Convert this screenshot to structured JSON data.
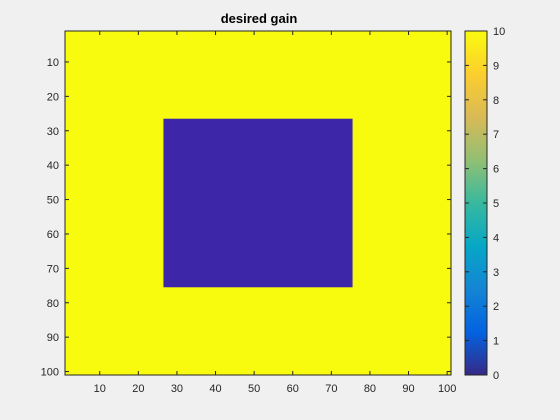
{
  "chart_data": {
    "type": "heatmap",
    "title": "desired gain",
    "xlabel": "",
    "ylabel": "",
    "x_range": [
      1,
      101
    ],
    "y_range": [
      1,
      101
    ],
    "y_direction": "reversed",
    "x_ticks": [
      10,
      20,
      30,
      40,
      50,
      60,
      70,
      80,
      90,
      100
    ],
    "y_ticks": [
      10,
      20,
      30,
      40,
      50,
      60,
      70,
      80,
      90,
      100
    ],
    "background_value": 10,
    "regions": [
      {
        "x_range": [
          27,
          75
        ],
        "y_range": [
          27,
          75
        ],
        "value": 0
      }
    ],
    "colorbar": {
      "range": [
        0,
        10
      ],
      "ticks": [
        0,
        1,
        2,
        3,
        4,
        5,
        6,
        7,
        8,
        9,
        10
      ],
      "colormap": "parula",
      "colormap_stops": [
        "#352a87",
        "#0363e1",
        "#1485d4",
        "#06a7c6",
        "#38b99e",
        "#92bf73",
        "#d9ba56",
        "#fcce2e",
        "#f9fb0e"
      ]
    },
    "colors": {
      "high": "#f9fb0e",
      "low": "#3e26a8"
    },
    "grid": false
  }
}
